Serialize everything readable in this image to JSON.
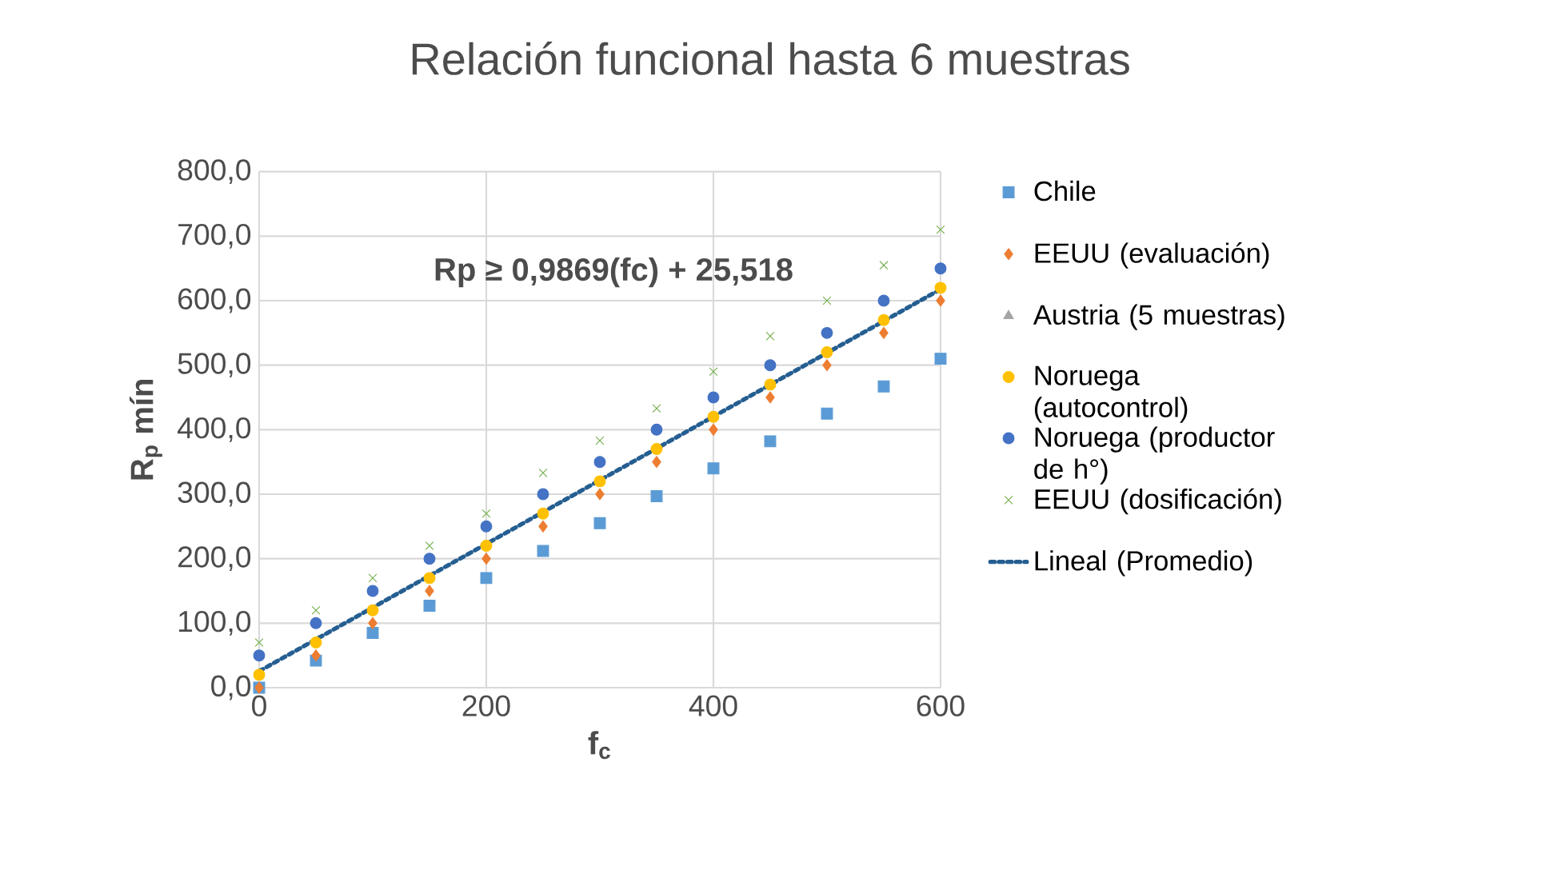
{
  "chart_data": {
    "type": "scatter",
    "title": "Relación funcional hasta 6 muestras",
    "xlabel": "f$_{c}$",
    "ylabel": "R$_{p}$ mín",
    "x": [
      0,
      50,
      100,
      150,
      200,
      250,
      300,
      350,
      400,
      450,
      500,
      550,
      600
    ],
    "series": [
      {
        "name": "Chile",
        "color": "#5b9bd5",
        "marker": "square",
        "values": [
          0,
          42,
          85,
          127,
          170,
          212,
          255,
          297,
          340,
          382,
          425,
          467,
          510
        ]
      },
      {
        "name": "EEUU (evaluación)",
        "color": "#ed7d31",
        "marker": "diamond",
        "values": [
          0,
          50,
          100,
          150,
          200,
          250,
          300,
          350,
          400,
          450,
          500,
          550,
          600
        ]
      },
      {
        "name": "Austria (5 muestras)",
        "color": "#a5a5a5",
        "marker": "triangle",
        "values": [
          null,
          null,
          null,
          null,
          null,
          null,
          null,
          null,
          null,
          null,
          null,
          null,
          null
        ]
      },
      {
        "name": "Noruega (autocontrol)",
        "color": "#ffc000",
        "marker": "circle",
        "values": [
          20,
          70,
          120,
          170,
          220,
          270,
          320,
          370,
          420,
          470,
          520,
          570,
          620
        ]
      },
      {
        "name": "Noruega (productor de h°)",
        "color": "#4472c4",
        "marker": "circle",
        "values": [
          50,
          100,
          150,
          200,
          250,
          300,
          350,
          400,
          450,
          500,
          550,
          600,
          650
        ]
      },
      {
        "name": "EEUU (dosificación)",
        "color": "#70ad47",
        "marker": "cross",
        "values": [
          70,
          120,
          170,
          220,
          270,
          333,
          383,
          433,
          490,
          545,
          600,
          655,
          710
        ]
      },
      {
        "name": "Lineal (Promedio)",
        "type": "line",
        "color": "#255e91",
        "marker": "none",
        "line_style": "dotted",
        "x": [
          0,
          600
        ],
        "values": [
          25.518,
          617.658
        ]
      }
    ],
    "annotations": [
      "Rp ≥ 0,9869(fc) + 25,518"
    ],
    "xlim": [
      0,
      600
    ],
    "xticks": [
      0,
      200,
      400,
      600
    ],
    "ylim": [
      0,
      800
    ],
    "yticks": [
      {
        "value": 0,
        "label": "0,0"
      },
      {
        "value": 100,
        "label": "100,0"
      },
      {
        "value": 200,
        "label": "200,0"
      },
      {
        "value": 300,
        "label": "300,0"
      },
      {
        "value": 400,
        "label": "400,0"
      },
      {
        "value": 500,
        "label": "500,0"
      },
      {
        "value": 600,
        "label": "600,0"
      },
      {
        "value": 700,
        "label": "700,0"
      },
      {
        "value": 800,
        "label": "800,0"
      }
    ],
    "grid": true,
    "legend": "right"
  }
}
